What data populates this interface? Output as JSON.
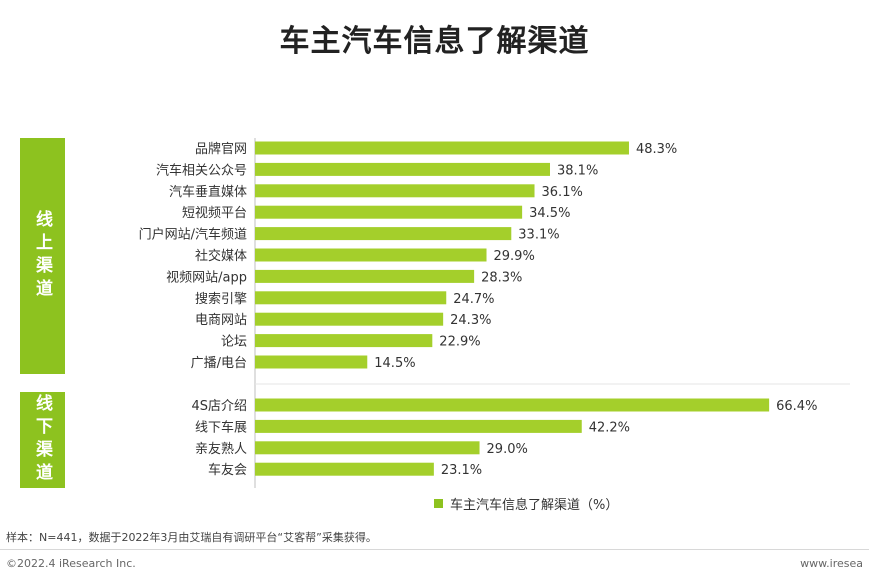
{
  "title": "车主汽车信息了解渠道",
  "groups": [
    {
      "label": "线上渠道",
      "color": "#8dc21f"
    },
    {
      "label": "线下渠道",
      "color": "#8dc21f"
    }
  ],
  "chart_data": {
    "type": "bar",
    "orientation": "horizontal",
    "title": "车主汽车信息了解渠道",
    "xlabel": "",
    "ylabel": "",
    "xlim": [
      0,
      70
    ],
    "grid": false,
    "legend_position": "bottom",
    "bar_color": "#a4cf2b",
    "series": [
      {
        "name": "车主汽车信息了解渠道（%）",
        "groups": [
          {
            "group": "线上渠道",
            "categories": [
              "品牌官网",
              "汽车相关公众号",
              "汽车垂直媒体",
              "短视频平台",
              "门户网站/汽车频道",
              "社交媒体",
              "视频网站/app",
              "搜索引擎",
              "电商网站",
              "论坛",
              "广播/电台"
            ],
            "values": [
              48.3,
              38.1,
              36.1,
              34.5,
              33.1,
              29.9,
              28.3,
              24.7,
              24.3,
              22.9,
              14.5
            ],
            "value_labels": [
              "48.3%",
              "38.1%",
              "36.1%",
              "34.5%",
              "33.1%",
              "29.9%",
              "28.3%",
              "24.7%",
              "24.3%",
              "22.9%",
              "14.5%"
            ]
          },
          {
            "group": "线下渠道",
            "categories": [
              "4S店介绍",
              "线下车展",
              "亲友熟人",
              "车友会"
            ],
            "values": [
              66.4,
              42.2,
              29.0,
              23.1
            ],
            "value_labels": [
              "66.4%",
              "42.2%",
              "29.0%",
              "23.1%"
            ]
          }
        ]
      }
    ]
  },
  "legend": {
    "label": "车主汽车信息了解渠道（%）"
  },
  "note": "样本：N=441，数据于2022年3月由艾瑞自有调研平台“艾客帮”采集获得。",
  "copyright": "©2022.4 iResearch Inc.",
  "website": "www.iresea"
}
